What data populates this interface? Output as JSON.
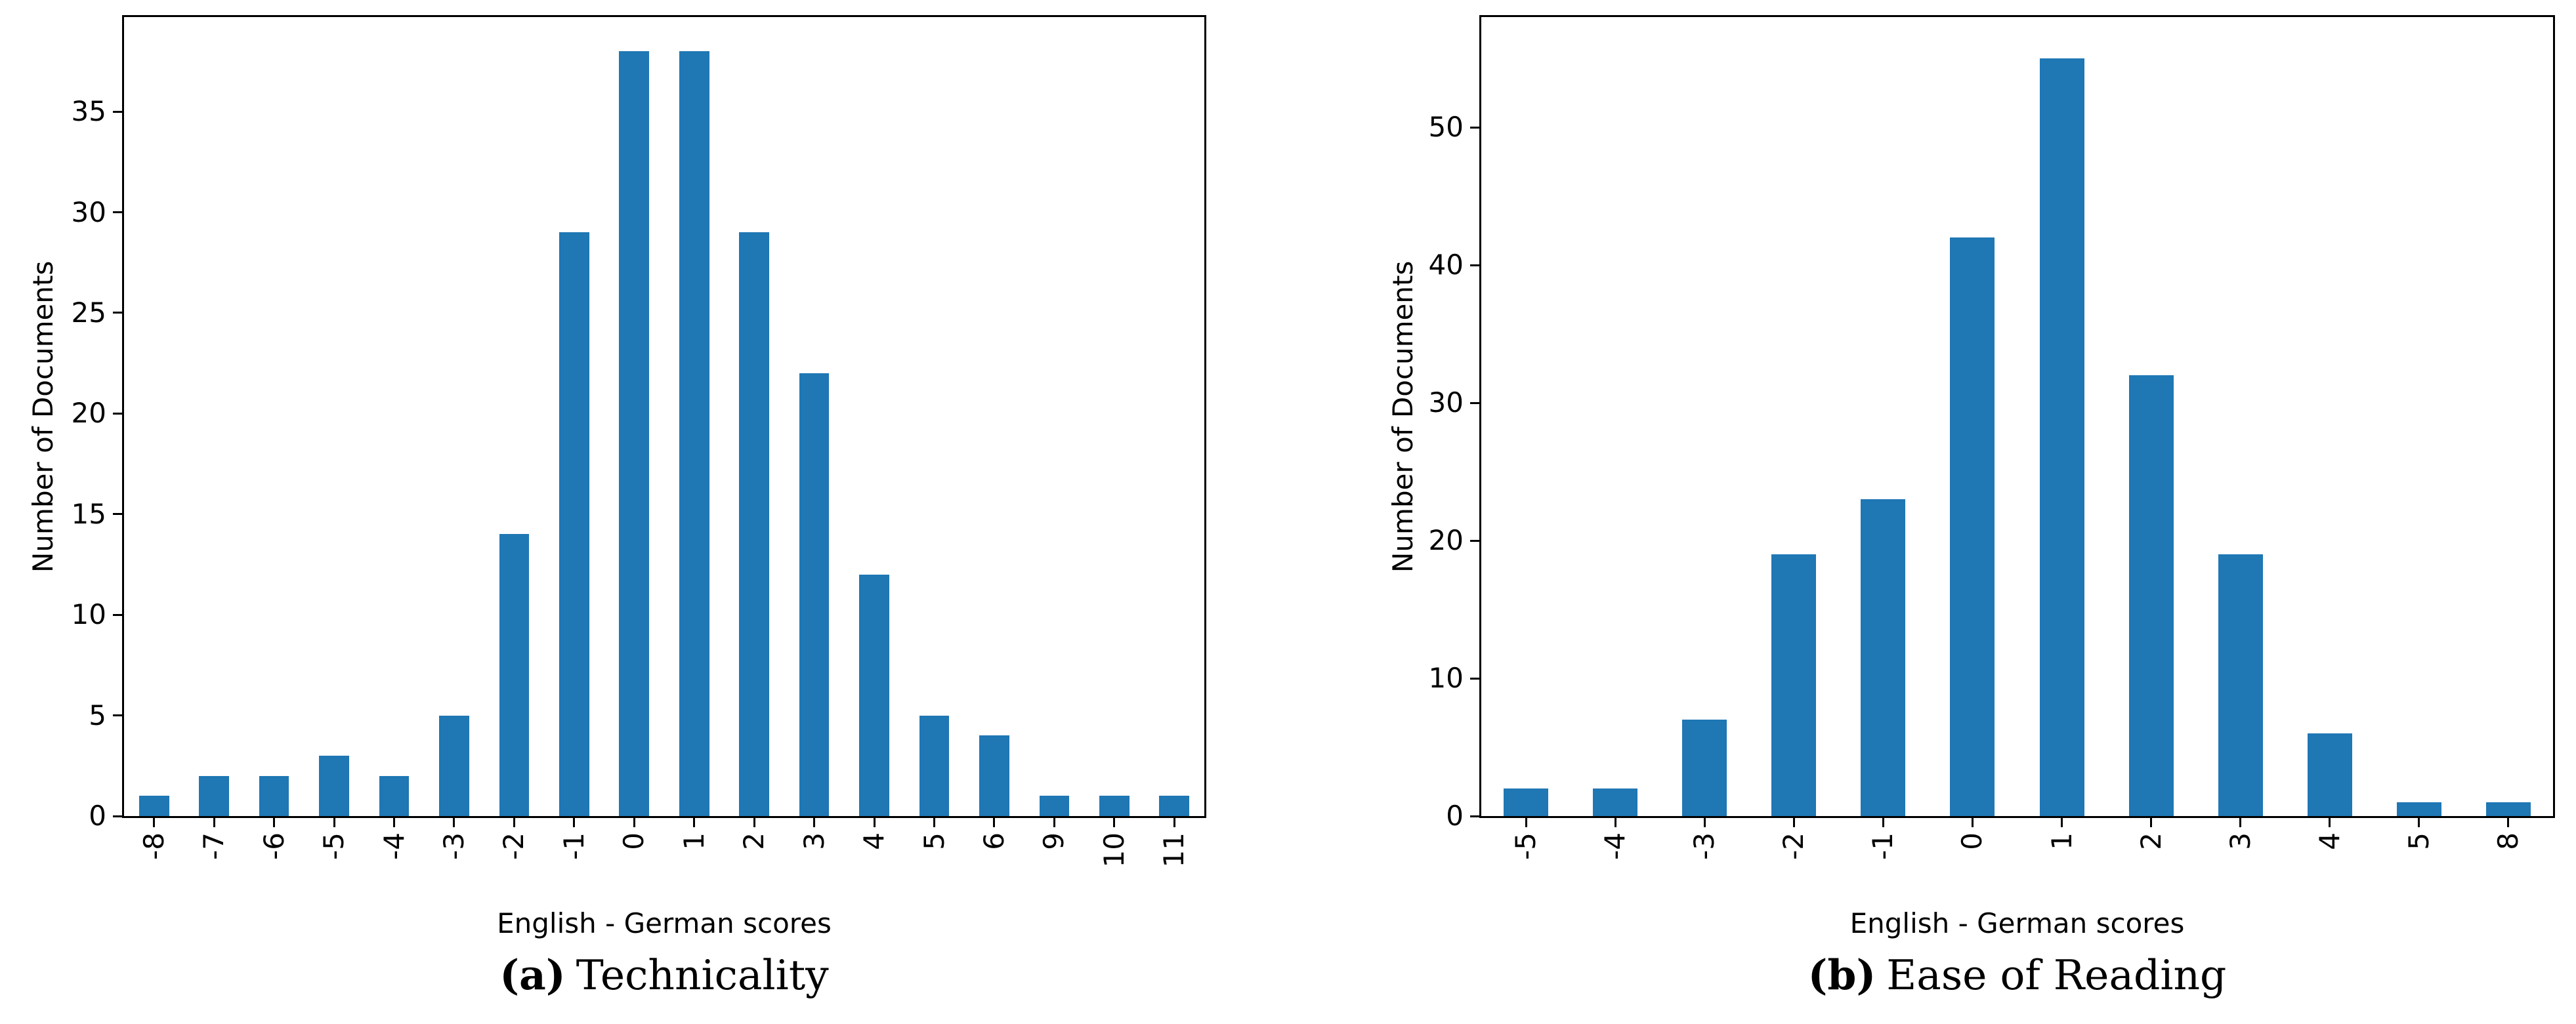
{
  "figure": {
    "background": "#ffffff",
    "axis_color": "#000000",
    "bar_color": "#1f77b4"
  },
  "chart_data": [
    {
      "id": "a",
      "type": "bar",
      "caption_label": "(a)",
      "caption_text": "Technicality",
      "xlabel": "English - German scores",
      "ylabel": "Number of Documents",
      "categories": [
        "-8",
        "-7",
        "-6",
        "-5",
        "-4",
        "-3",
        "-2",
        "-1",
        "0",
        "1",
        "2",
        "3",
        "4",
        "5",
        "6",
        "9",
        "10",
        "11"
      ],
      "values": [
        1,
        2,
        2,
        3,
        2,
        5,
        14,
        29,
        38,
        38,
        29,
        22,
        12,
        5,
        4,
        1,
        1,
        1
      ],
      "yticks": [
        0,
        5,
        10,
        15,
        20,
        25,
        30,
        35
      ],
      "ylim": [
        0,
        39.7
      ],
      "bar_color": "#1f77b4",
      "grid": false,
      "legend": "none",
      "x_tick_rotation": 90
    },
    {
      "id": "b",
      "type": "bar",
      "caption_label": "(b)",
      "caption_text": "Ease of Reading",
      "xlabel": "English - German scores",
      "ylabel": "Number of Documents",
      "categories": [
        "-5",
        "-4",
        "-3",
        "-2",
        "-1",
        "0",
        "1",
        "2",
        "3",
        "4",
        "5",
        "8"
      ],
      "values": [
        2,
        2,
        7,
        19,
        23,
        42,
        55,
        32,
        19,
        6,
        1,
        1
      ],
      "yticks": [
        0,
        10,
        20,
        30,
        40,
        50
      ],
      "ylim": [
        0,
        58
      ],
      "bar_color": "#1f77b4",
      "grid": false,
      "legend": "none",
      "x_tick_rotation": 90
    }
  ]
}
